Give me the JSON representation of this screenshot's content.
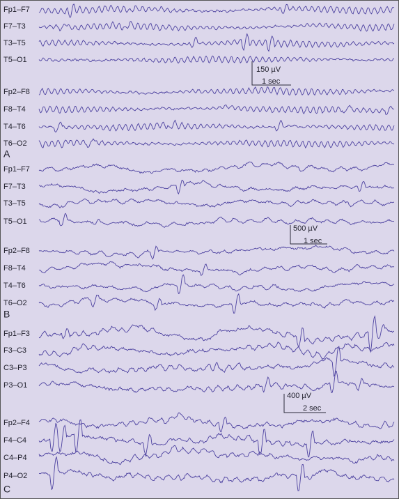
{
  "panels": [
    {
      "label": "A",
      "groups": [
        [
          "Fp1–F7",
          "F7–T3",
          "T3–T5",
          "T5–O1"
        ],
        [
          "Fp2–F8",
          "F8–T4",
          "T4–T6",
          "T6–O2"
        ]
      ],
      "scale": {
        "amplitude": "150 µV",
        "time": "1 sec"
      }
    },
    {
      "label": "B",
      "groups": [
        [
          "Fp1–F7",
          "F7–T3",
          "T3–T5",
          "T5–O1"
        ],
        [
          "Fp2–F8",
          "F8–T4",
          "T4–T6",
          "T6–O2"
        ]
      ],
      "scale": {
        "amplitude": "500 µV",
        "time": "1 sec"
      }
    },
    {
      "label": "C",
      "groups": [
        [
          "Fp1–F3",
          "F3–C3",
          "C3–P3",
          "P3–O1"
        ],
        [
          "Fp2–F4",
          "F4–C4",
          "C4–P4",
          "P4–O2"
        ]
      ],
      "scale": {
        "amplitude": "400 µV",
        "time": "2 sec"
      }
    }
  ]
}
